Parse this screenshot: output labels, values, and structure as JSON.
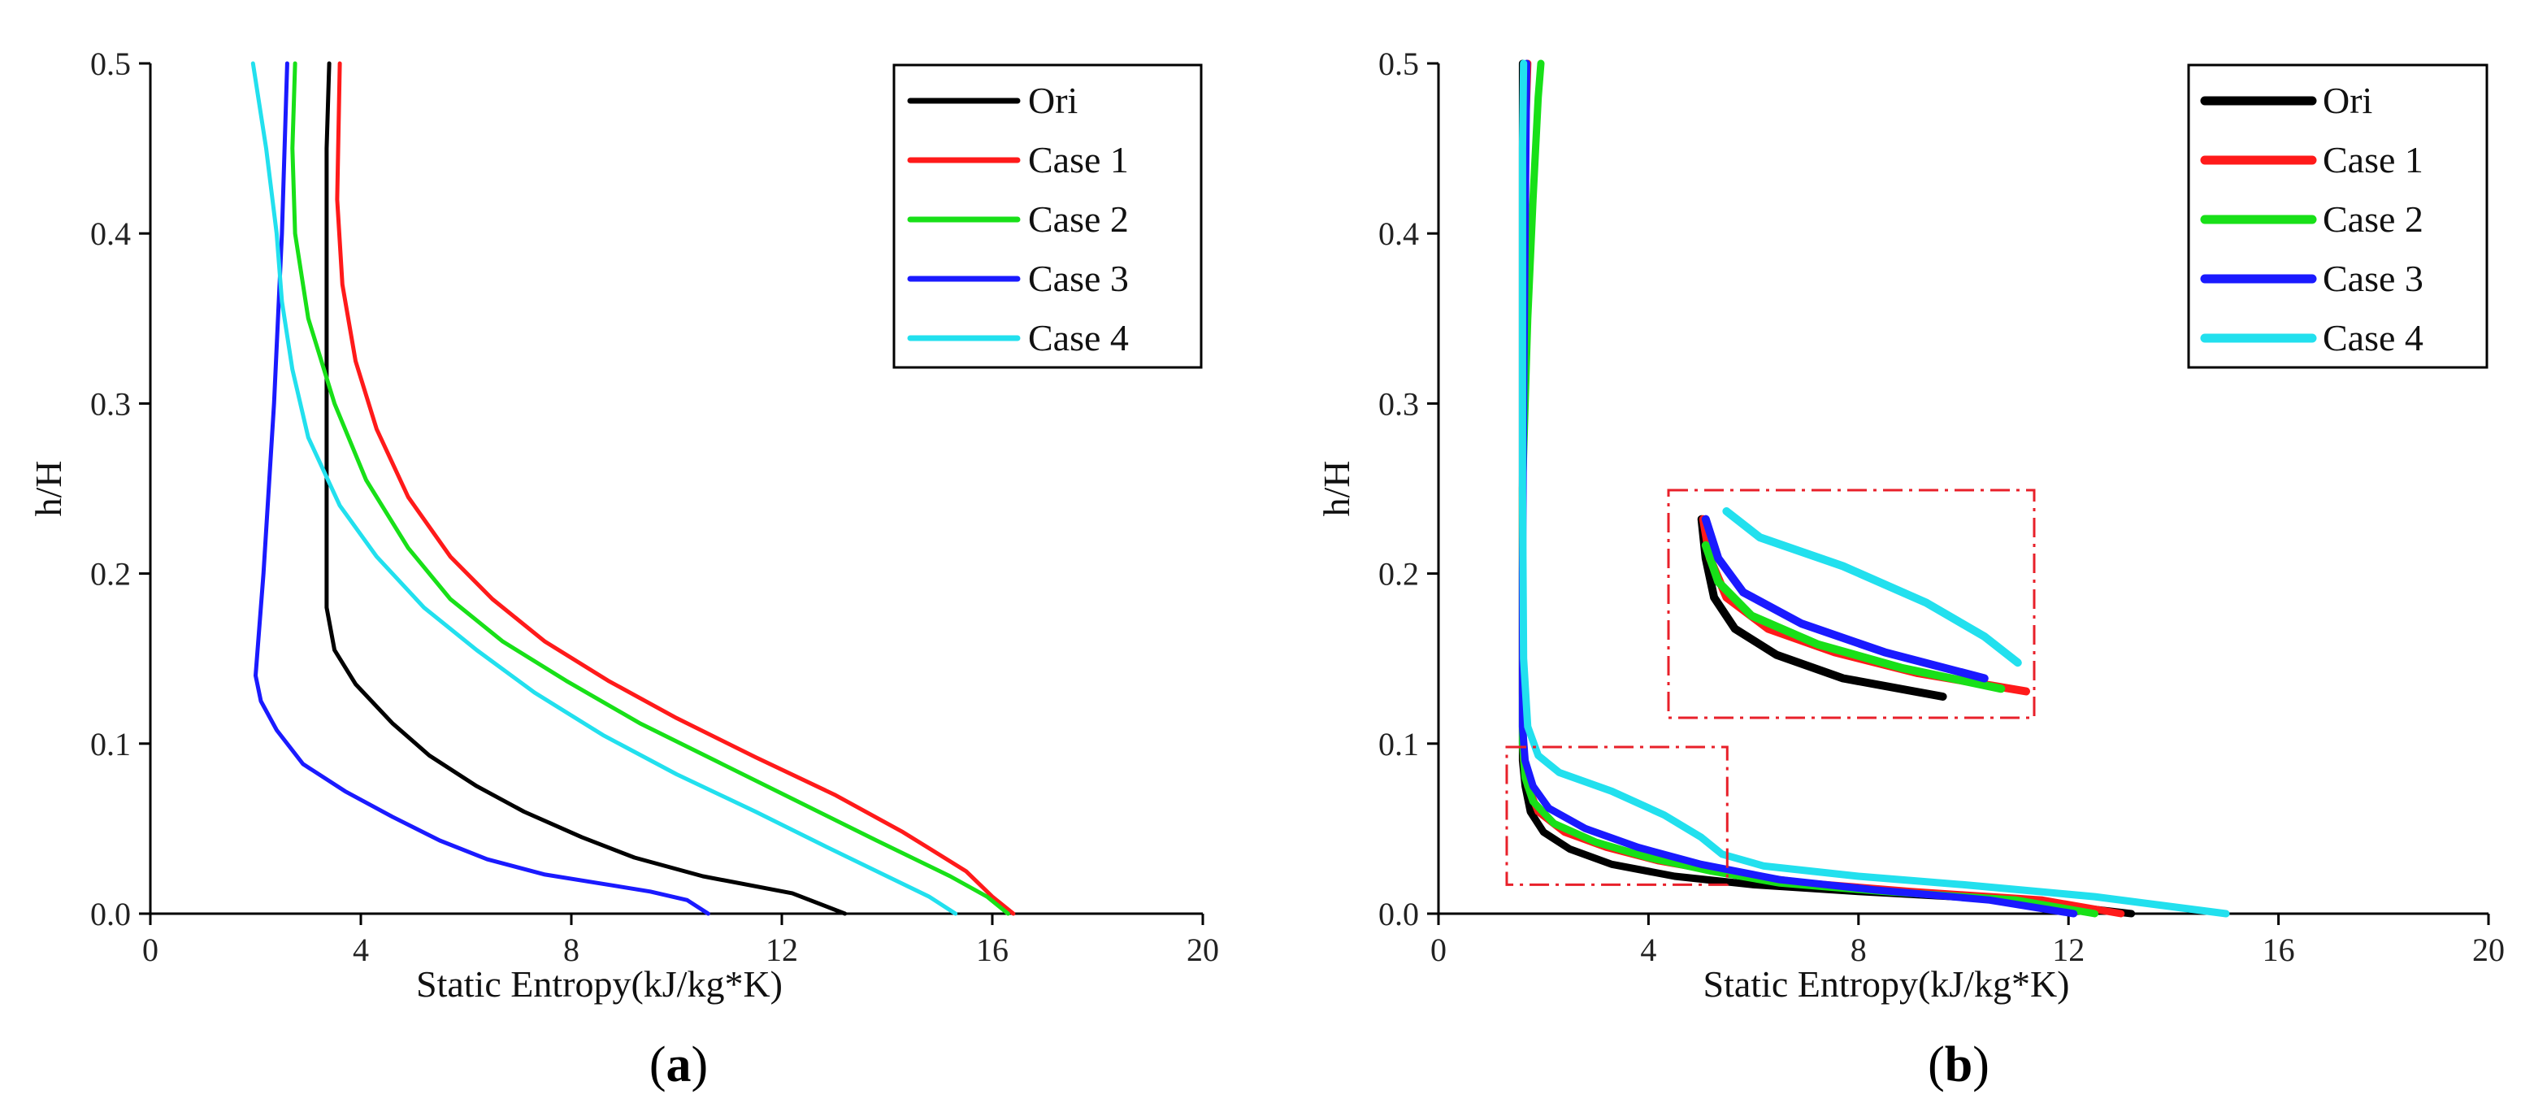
{
  "chart_data": [
    {
      "type": "line",
      "panel": "a",
      "xlabel": "Static Entropy(kJ/kg*K)",
      "ylabel": "h/H",
      "xlim": [
        0,
        20
      ],
      "ylim": [
        0,
        0.5
      ],
      "xticks": [
        "0",
        "4",
        "8",
        "12",
        "16",
        "20"
      ],
      "yticks": [
        "0.0",
        "0.1",
        "0.2",
        "0.3",
        "0.4",
        "0.5"
      ],
      "legend_position": "top-right",
      "series": [
        {
          "name": "Ori",
          "color": "#000000",
          "points": [
            [
              13.2,
              0
            ],
            [
              12.2,
              0.012
            ],
            [
              10.5,
              0.022
            ],
            [
              9.2,
              0.033
            ],
            [
              8.2,
              0.045
            ],
            [
              7.1,
              0.06
            ],
            [
              6.2,
              0.075
            ],
            [
              5.3,
              0.093
            ],
            [
              4.6,
              0.112
            ],
            [
              3.9,
              0.135
            ],
            [
              3.5,
              0.155
            ],
            [
              3.35,
              0.18
            ],
            [
              3.35,
              0.25
            ],
            [
              3.35,
              0.35
            ],
            [
              3.35,
              0.45
            ],
            [
              3.4,
              0.5
            ]
          ]
        },
        {
          "name": "Case 1",
          "color": "#ff1a1a",
          "points": [
            [
              16.4,
              0
            ],
            [
              16.0,
              0.01
            ],
            [
              15.5,
              0.025
            ],
            [
              14.3,
              0.048
            ],
            [
              13.0,
              0.07
            ],
            [
              11.5,
              0.092
            ],
            [
              10.0,
              0.115
            ],
            [
              8.7,
              0.137
            ],
            [
              7.5,
              0.16
            ],
            [
              6.5,
              0.185
            ],
            [
              5.7,
              0.21
            ],
            [
              4.9,
              0.245
            ],
            [
              4.3,
              0.285
            ],
            [
              3.9,
              0.325
            ],
            [
              3.65,
              0.37
            ],
            [
              3.55,
              0.42
            ],
            [
              3.6,
              0.5
            ]
          ]
        },
        {
          "name": "Case 2",
          "color": "#18e018",
          "points": [
            [
              16.3,
              0
            ],
            [
              15.9,
              0.01
            ],
            [
              15.2,
              0.022
            ],
            [
              13.8,
              0.043
            ],
            [
              12.3,
              0.066
            ],
            [
              10.8,
              0.089
            ],
            [
              9.3,
              0.112
            ],
            [
              7.9,
              0.137
            ],
            [
              6.7,
              0.16
            ],
            [
              5.7,
              0.185
            ],
            [
              4.9,
              0.215
            ],
            [
              4.1,
              0.255
            ],
            [
              3.5,
              0.3
            ],
            [
              3.0,
              0.35
            ],
            [
              2.75,
              0.4
            ],
            [
              2.7,
              0.45
            ],
            [
              2.75,
              0.5
            ]
          ]
        },
        {
          "name": "Case 3",
          "color": "#1a1aff",
          "points": [
            [
              10.6,
              0
            ],
            [
              10.2,
              0.008
            ],
            [
              9.5,
              0.013
            ],
            [
              8.5,
              0.018
            ],
            [
              7.5,
              0.023
            ],
            [
              6.4,
              0.032
            ],
            [
              5.5,
              0.043
            ],
            [
              4.6,
              0.057
            ],
            [
              3.7,
              0.072
            ],
            [
              2.9,
              0.088
            ],
            [
              2.4,
              0.108
            ],
            [
              2.1,
              0.125
            ],
            [
              2.0,
              0.14
            ],
            [
              2.15,
              0.2
            ],
            [
              2.35,
              0.3
            ],
            [
              2.5,
              0.4
            ],
            [
              2.6,
              0.5
            ]
          ]
        },
        {
          "name": "Case 4",
          "color": "#22e0ee",
          "points": [
            [
              15.3,
              0
            ],
            [
              14.8,
              0.01
            ],
            [
              14.0,
              0.022
            ],
            [
              12.8,
              0.04
            ],
            [
              11.5,
              0.06
            ],
            [
              10.0,
              0.082
            ],
            [
              8.6,
              0.105
            ],
            [
              7.3,
              0.13
            ],
            [
              6.2,
              0.155
            ],
            [
              5.2,
              0.18
            ],
            [
              4.3,
              0.21
            ],
            [
              3.6,
              0.24
            ],
            [
              3.0,
              0.28
            ],
            [
              2.7,
              0.32
            ],
            [
              2.5,
              0.36
            ],
            [
              2.4,
              0.4
            ],
            [
              2.2,
              0.45
            ],
            [
              1.95,
              0.5
            ]
          ]
        }
      ]
    },
    {
      "type": "line",
      "panel": "b",
      "xlabel": "Static Entropy(kJ/kg*K)",
      "ylabel": "h/H",
      "xlim": [
        0,
        20
      ],
      "ylim": [
        0,
        0.5
      ],
      "xticks": [
        "0",
        "4",
        "8",
        "12",
        "16",
        "20"
      ],
      "yticks": [
        "0.0",
        "0.1",
        "0.2",
        "0.3",
        "0.4",
        "0.5"
      ],
      "legend_position": "top-right",
      "zoom_region": {
        "x": [
          1.3,
          5.5
        ],
        "y": [
          0.017,
          0.098
        ]
      },
      "series": [
        {
          "name": "Ori",
          "color": "#000000",
          "points": [
            [
              13.2,
              0
            ],
            [
              11.0,
              0.008
            ],
            [
              8.0,
              0.013
            ],
            [
              6.0,
              0.017
            ],
            [
              4.5,
              0.022
            ],
            [
              3.3,
              0.029
            ],
            [
              2.5,
              0.038
            ],
            [
              2.0,
              0.048
            ],
            [
              1.75,
              0.06
            ],
            [
              1.65,
              0.075
            ],
            [
              1.6,
              0.09
            ],
            [
              1.6,
              0.12
            ],
            [
              1.6,
              0.2
            ],
            [
              1.6,
              0.3
            ],
            [
              1.6,
              0.4
            ],
            [
              1.6,
              0.5
            ]
          ]
        },
        {
          "name": "Case 1",
          "color": "#ff1a1a",
          "points": [
            [
              13.0,
              0
            ],
            [
              11.5,
              0.008
            ],
            [
              9.0,
              0.013
            ],
            [
              7.0,
              0.018
            ],
            [
              5.5,
              0.024
            ],
            [
              4.2,
              0.031
            ],
            [
              3.2,
              0.039
            ],
            [
              2.4,
              0.048
            ],
            [
              1.9,
              0.06
            ],
            [
              1.7,
              0.075
            ],
            [
              1.62,
              0.09
            ],
            [
              1.6,
              0.13
            ],
            [
              1.6,
              0.25
            ],
            [
              1.62,
              0.35
            ],
            [
              1.65,
              0.45
            ],
            [
              1.7,
              0.5
            ]
          ]
        },
        {
          "name": "Case 2",
          "color": "#18e018",
          "points": [
            [
              12.5,
              0
            ],
            [
              11.0,
              0.008
            ],
            [
              8.5,
              0.013
            ],
            [
              6.5,
              0.018
            ],
            [
              5.2,
              0.025
            ],
            [
              4.0,
              0.033
            ],
            [
              3.0,
              0.042
            ],
            [
              2.2,
              0.053
            ],
            [
              1.8,
              0.066
            ],
            [
              1.65,
              0.08
            ],
            [
              1.6,
              0.1
            ],
            [
              1.6,
              0.15
            ],
            [
              1.6,
              0.25
            ],
            [
              1.7,
              0.35
            ],
            [
              1.8,
              0.42
            ],
            [
              1.9,
              0.48
            ],
            [
              1.95,
              0.5
            ]
          ]
        },
        {
          "name": "Case 3",
          "color": "#1a1aff",
          "points": [
            [
              12.1,
              0
            ],
            [
              10.5,
              0.008
            ],
            [
              8.3,
              0.014
            ],
            [
              6.5,
              0.02
            ],
            [
              5.0,
              0.029
            ],
            [
              3.8,
              0.039
            ],
            [
              2.8,
              0.05
            ],
            [
              2.1,
              0.062
            ],
            [
              1.8,
              0.075
            ],
            [
              1.65,
              0.09
            ],
            [
              1.6,
              0.11
            ],
            [
              1.6,
              0.2
            ],
            [
              1.62,
              0.3
            ],
            [
              1.65,
              0.4
            ],
            [
              1.68,
              0.5
            ]
          ]
        },
        {
          "name": "Case 4",
          "color": "#22e0ee",
          "points": [
            [
              15.0,
              0
            ],
            [
              12.5,
              0.01
            ],
            [
              10.0,
              0.017
            ],
            [
              8.0,
              0.022
            ],
            [
              6.2,
              0.028
            ],
            [
              5.4,
              0.035
            ],
            [
              5.0,
              0.045
            ],
            [
              4.3,
              0.058
            ],
            [
              3.3,
              0.072
            ],
            [
              2.3,
              0.083
            ],
            [
              1.9,
              0.093
            ],
            [
              1.7,
              0.11
            ],
            [
              1.62,
              0.15
            ],
            [
              1.6,
              0.25
            ],
            [
              1.6,
              0.35
            ],
            [
              1.6,
              0.45
            ],
            [
              1.62,
              0.5
            ]
          ]
        }
      ]
    }
  ],
  "panels": {
    "a": {
      "open": "(",
      "letter": "a",
      "close": ")"
    },
    "b": {
      "open": "(",
      "letter": "b",
      "close": ")"
    }
  }
}
